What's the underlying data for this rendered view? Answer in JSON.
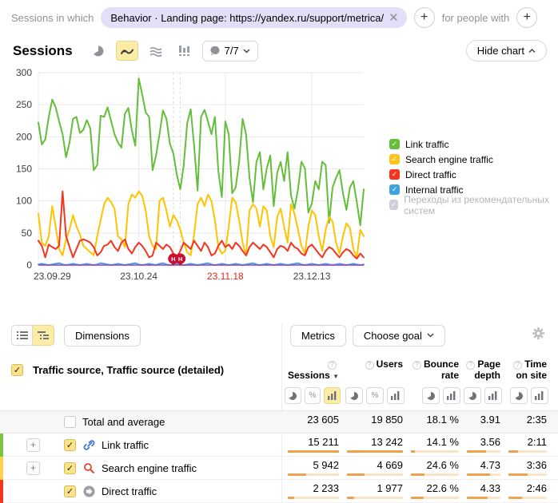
{
  "filter_bar": {
    "label_left": "Sessions in which",
    "chip_text": "Behavior · Landing page: https://yandex.ru/support/metrica/",
    "label_right": "for people with"
  },
  "chart_header": {
    "title": "Sessions",
    "comments_count": "7/7",
    "hide_chart_label": "Hide chart"
  },
  "legend": [
    {
      "label": "Link traffic",
      "color": "#64be3b",
      "disabled": false
    },
    {
      "label": "Search engine traffic",
      "color": "#ffc51f",
      "disabled": false
    },
    {
      "label": "Direct traffic",
      "color": "#f5341f",
      "disabled": false
    },
    {
      "label": "Internal traffic",
      "color": "#40a3e0",
      "disabled": false
    },
    {
      "label": "Переходы из рекомендательных систем",
      "color": "#cdd0d4",
      "disabled": true
    }
  ],
  "chart_data": {
    "type": "line",
    "title": "Sessions",
    "ylim": [
      0,
      300
    ],
    "yticks": [
      0,
      50,
      100,
      150,
      200,
      250,
      300
    ],
    "x_tick_labels": [
      "23.09.29",
      "23.10.24",
      "23.11.18",
      "23.12.13"
    ],
    "x_tick_indices": [
      4,
      29,
      54,
      79
    ],
    "highlighted_tick": "23.11.18",
    "highlight_color": "#e0281b",
    "marker_indices": [
      39,
      41
    ],
    "marker_label": "Н",
    "marker_color": "#c9102e",
    "grid": true,
    "legend_position": "right",
    "series": [
      {
        "name": "Link traffic",
        "color": "#64be3b",
        "values": [
          222,
          188,
          196,
          231,
          258,
          246,
          224,
          204,
          168,
          191,
          228,
          231,
          206,
          211,
          226,
          213,
          148,
          156,
          233,
          231,
          246,
          225,
          204,
          191,
          183,
          236,
          245,
          210,
          186,
          291,
          266,
          238,
          231,
          148,
          171,
          204,
          241,
          228,
          189,
          174,
          141,
          118,
          156,
          221,
          243,
          186,
          116,
          231,
          242,
          224,
          204,
          231,
          146,
          106,
          224,
          204,
          112,
          121,
          161,
          228,
          204,
          136,
          98,
          161,
          176,
          118,
          151,
          171,
          92,
          144,
          161,
          131,
          176,
          108,
          88,
          118,
          161,
          151,
          82,
          96,
          131,
          118,
          161,
          156,
          66,
          121,
          136,
          148,
          112,
          86,
          121,
          131,
          98,
          62,
          118
        ]
      },
      {
        "name": "Search engine traffic",
        "color": "#ffc300",
        "values": [
          80,
          35,
          30,
          45,
          92,
          60,
          25,
          15,
          40,
          55,
          78,
          60,
          48,
          30,
          25,
          20,
          15,
          45,
          70,
          95,
          105,
          98,
          88,
          45,
          40,
          28,
          95,
          110,
          105,
          115,
          108,
          85,
          45,
          30,
          25,
          100,
          105,
          85,
          60,
          78,
          70,
          55,
          35,
          20,
          15,
          48,
          95,
          105,
          92,
          110,
          100,
          70,
          28,
          18,
          22,
          60,
          105,
          98,
          70,
          35,
          15,
          85,
          95,
          88,
          60,
          92,
          85,
          45,
          28,
          75,
          88,
          60,
          35,
          95,
          80,
          55,
          30,
          18,
          60,
          85,
          78,
          45,
          22,
          55,
          75,
          68,
          35,
          18,
          45,
          65,
          58,
          25,
          12,
          55,
          45
        ]
      },
      {
        "name": "Direct traffic",
        "color": "#f5341f",
        "values": [
          38,
          30,
          12,
          32,
          28,
          25,
          30,
          115,
          45,
          28,
          12,
          25,
          38,
          40,
          38,
          35,
          28,
          15,
          20,
          30,
          32,
          38,
          28,
          22,
          35,
          40,
          25,
          18,
          28,
          35,
          30,
          22,
          12,
          15,
          35,
          30,
          25,
          32,
          28,
          18,
          12,
          22,
          35,
          30,
          25,
          38,
          30,
          22,
          35,
          28,
          15,
          18,
          30,
          38,
          28,
          32,
          25,
          35,
          30,
          22,
          15,
          28,
          35,
          30,
          25,
          32,
          28,
          20,
          12,
          25,
          30,
          28,
          22,
          35,
          28,
          25,
          18,
          15,
          28,
          32,
          25,
          18,
          12,
          22,
          28,
          25,
          18,
          12,
          20,
          25,
          22,
          15,
          10,
          18,
          12
        ]
      },
      {
        "name": "Internal traffic",
        "color": "#40a3e0",
        "values": [
          1,
          2,
          1,
          0,
          1,
          2,
          3,
          1,
          0,
          1,
          2,
          1,
          0,
          1,
          2,
          1,
          0,
          1,
          3,
          2,
          1,
          0,
          1,
          2,
          1,
          0,
          1,
          2,
          3,
          1,
          0,
          1,
          2,
          1,
          0,
          2,
          3,
          1,
          0,
          1,
          2,
          1,
          0,
          1,
          2,
          1,
          0,
          1,
          2,
          3,
          1,
          0,
          1,
          2,
          1,
          0,
          1,
          2,
          1,
          0,
          1,
          2,
          3,
          1,
          0,
          1,
          2,
          1,
          0,
          1,
          2,
          1,
          0,
          1,
          2,
          3,
          1,
          0,
          1,
          2,
          1,
          0,
          1,
          2,
          1,
          0,
          1,
          2,
          1,
          0,
          1,
          2,
          1,
          0,
          1
        ]
      },
      {
        "name": "Переходы из рекомендательных систем",
        "color": "#a03fc0",
        "flat": true,
        "values": [
          0,
          0
        ]
      }
    ]
  },
  "toolbar": {
    "dimensions_label": "Dimensions",
    "metrics_label": "Metrics",
    "choose_goal_label": "Choose goal"
  },
  "table": {
    "dimension_header": "Traffic source, Traffic source (detailed)",
    "columns": [
      {
        "label": "Sessions",
        "sortable": true,
        "sorted": true,
        "modes": [
          "pie",
          "percent",
          "bar"
        ],
        "selected_mode": "bar"
      },
      {
        "label": "Users",
        "sortable": true,
        "sorted": false,
        "modes": [
          "pie",
          "percent",
          "bar"
        ],
        "selected_mode": null
      },
      {
        "label": "Bounce rate",
        "sortable": true,
        "sorted": false,
        "modes": [
          "pie",
          "bar"
        ],
        "selected_mode": null
      },
      {
        "label": "Page depth",
        "sortable": true,
        "sorted": false,
        "modes": [
          "pie",
          "bar"
        ],
        "selected_mode": null
      },
      {
        "label": "Time on site",
        "sortable": true,
        "sorted": false,
        "modes": [
          "pie",
          "bar"
        ],
        "selected_mode": null
      }
    ],
    "rows": [
      {
        "name": "Total and average",
        "type": "total",
        "checked": false,
        "expandable": false,
        "icon": null,
        "stripe": null,
        "values": [
          "23 605",
          "19 850",
          "18.1 %",
          "3.91",
          "2:35"
        ],
        "bars": null
      },
      {
        "name": "Link traffic",
        "type": "data",
        "checked": true,
        "expandable": true,
        "icon": "link-icon",
        "stripe": "#7fc241",
        "values": [
          "15 211",
          "13 242",
          "14.1 %",
          "3.56",
          "2:11"
        ],
        "bars": [
          100,
          100,
          9,
          56,
          25
        ]
      },
      {
        "name": "Search engine traffic",
        "type": "data",
        "checked": true,
        "expandable": true,
        "icon": "search-icon",
        "stripe": "#ffd24d",
        "values": [
          "5 942",
          "4 669",
          "24.6 %",
          "4.73",
          "3:36"
        ],
        "bars": [
          36,
          32,
          28,
          70,
          50
        ]
      },
      {
        "name": "Direct traffic",
        "type": "data",
        "checked": true,
        "expandable": false,
        "icon": "direct-arrow-icon",
        "stripe": "#f5341f",
        "values": [
          "2 233",
          "1 977",
          "22.6 %",
          "4.33",
          "2:46"
        ],
        "bars": [
          13,
          13,
          26,
          62,
          36
        ]
      }
    ]
  }
}
